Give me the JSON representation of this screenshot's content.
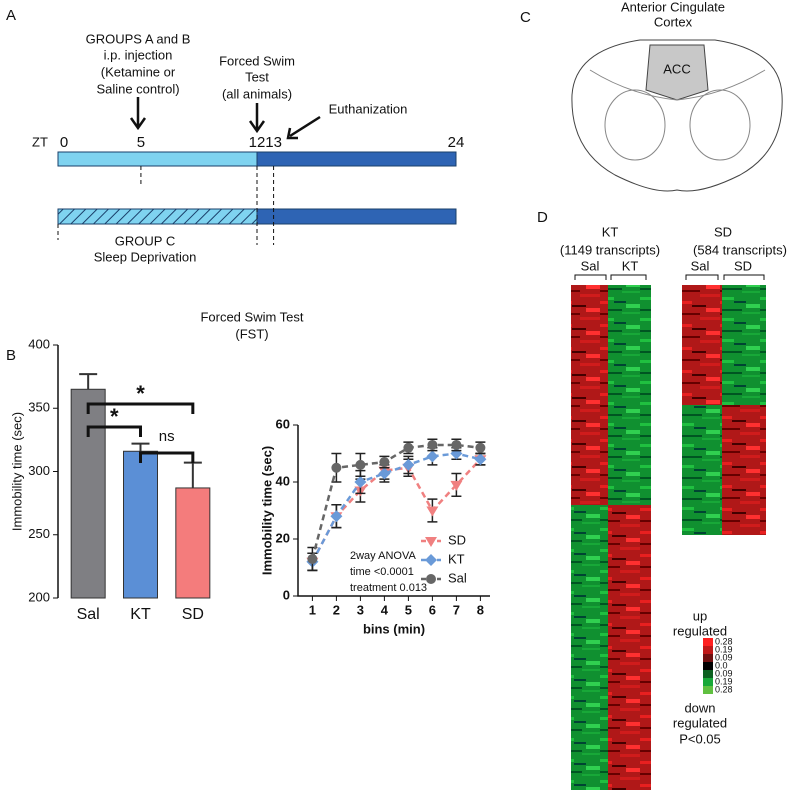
{
  "panel_labels": [
    "A",
    "B",
    "C",
    "D"
  ],
  "timeline": {
    "axis_label": "ZT",
    "xlim": [
      0,
      24
    ],
    "ticks": [
      0,
      5,
      12,
      13,
      24
    ],
    "injection": [
      "GROUPS A and B",
      "i.p. injection",
      "(Ketamine or",
      "Saline control)"
    ],
    "fst": [
      "Forced Swim",
      "Test",
      "(all animals)"
    ],
    "euthanization": "Euthanization",
    "group_c": [
      "GROUP C",
      "Sleep Deprivation"
    ]
  },
  "fst_title": [
    "Forced Swim Test",
    "(FST)"
  ],
  "brain": {
    "title": [
      "Anterior Cingulate",
      "Cortex"
    ],
    "region": "ACC"
  },
  "heatmap": {
    "kt_title": [
      "KT",
      "(1149 transcripts)"
    ],
    "kt_groups": [
      "Sal",
      "KT"
    ],
    "sd_title": [
      "SD",
      "(584 transcripts)"
    ],
    "sd_groups": [
      "Sal",
      "SD"
    ],
    "up": [
      "up",
      "regulated"
    ],
    "down": [
      "down",
      "regulated",
      "P<0.05"
    ],
    "scale": [
      "0.28",
      "0.19",
      "0.09",
      "0.0",
      "0.09",
      "0.19",
      "0.28"
    ]
  },
  "chart_data": [
    {
      "type": "bar",
      "ylabel": "Immobility time (sec)",
      "categories": [
        "Sal",
        "KT",
        "SD"
      ],
      "values": [
        365,
        316,
        287
      ],
      "errors": [
        12,
        6,
        20
      ],
      "colors": [
        "#7f7f83",
        "#5b8fd6",
        "#f47c7c"
      ],
      "ylim": [
        200,
        400
      ],
      "yticks": [
        200,
        250,
        300,
        350,
        400
      ],
      "significance": [
        "*",
        "*",
        "ns"
      ]
    },
    {
      "type": "line",
      "ylabel": "Immobility time (sec)",
      "xlabel": "bins (min)",
      "x": [
        1,
        2,
        3,
        4,
        5,
        6,
        7,
        8
      ],
      "xlim": [
        0.4,
        8.4
      ],
      "xticks": [
        1,
        2,
        3,
        4,
        5,
        6,
        7,
        8
      ],
      "ylim": [
        0,
        60
      ],
      "yticks": [
        0,
        20,
        40,
        60
      ],
      "series": [
        {
          "name": "SD",
          "color": "#f08080",
          "marker": "triangle",
          "values": [
            12,
            28,
            37,
            44,
            45,
            30,
            39,
            48
          ],
          "errors": [
            3,
            4,
            4,
            3,
            3,
            4,
            4,
            2
          ]
        },
        {
          "name": "KT",
          "color": "#6a9ad8",
          "marker": "diamond",
          "values": [
            12,
            28,
            40,
            43,
            46,
            49,
            50,
            48
          ],
          "errors": [
            3,
            4,
            4,
            3,
            3,
            3,
            2,
            2
          ]
        },
        {
          "name": "Sal",
          "color": "#666666",
          "marker": "circle",
          "values": [
            13,
            45,
            46,
            47,
            52,
            53,
            53,
            52
          ],
          "errors": [
            4,
            5,
            4,
            2,
            2,
            2,
            2,
            2
          ]
        }
      ],
      "annotation": [
        "2way ANOVA",
        "time <0.0001",
        "treatment 0.013"
      ]
    }
  ]
}
